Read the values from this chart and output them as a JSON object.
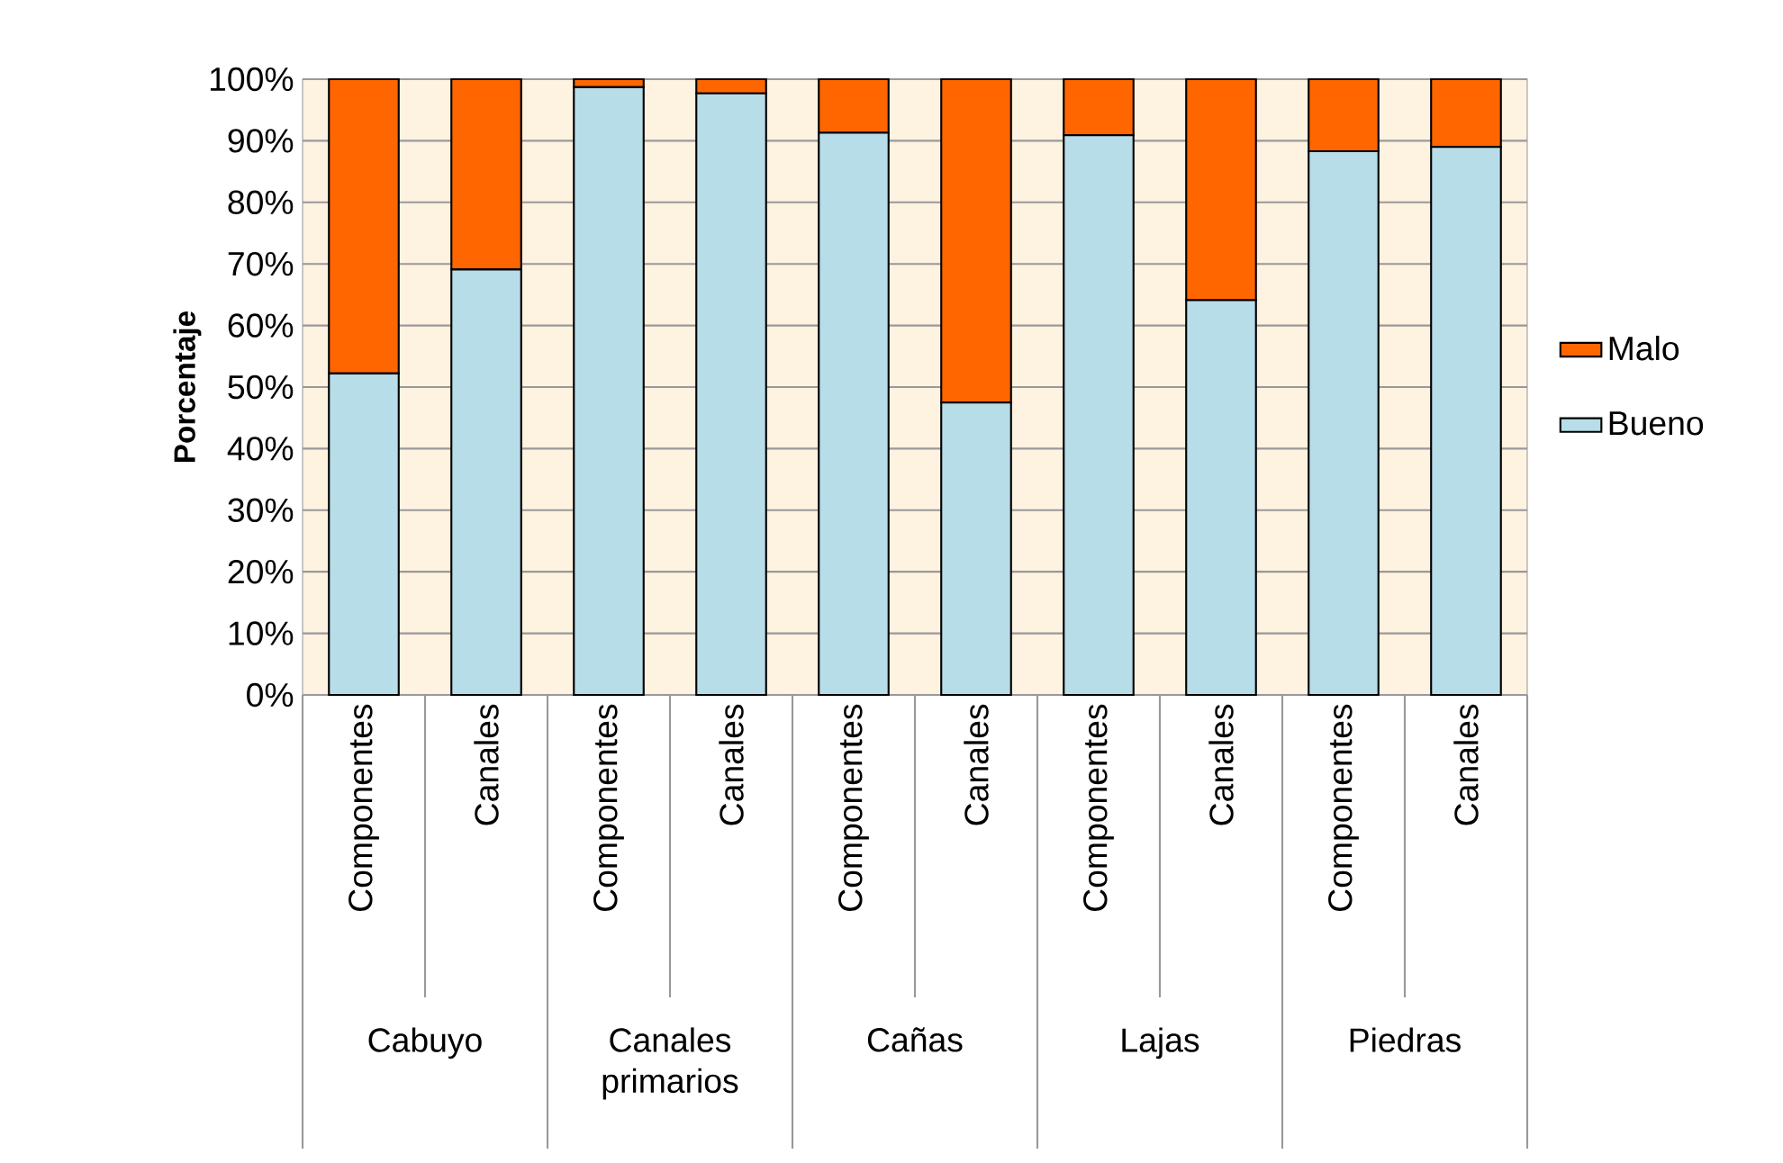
{
  "chart_data": {
    "type": "bar",
    "stacked": true,
    "ylabel": "Porcentaje",
    "categories": [
      "Componentes",
      "Canales",
      "Componentes",
      "Canales",
      "Componentes",
      "Canales",
      "Componentes",
      "Canales",
      "Componentes",
      "Canales"
    ],
    "annotations": [
      "Cabuyo",
      "Canales primarios",
      "Cañas",
      "Lajas",
      "Piedras"
    ],
    "series": [
      {
        "name": "Bueno",
        "color": "#b7dde8",
        "values": [
          52.2,
          69.1,
          98.7,
          97.7,
          91.3,
          47.5,
          90.9,
          64.1,
          88.3,
          89.0
        ]
      },
      {
        "name": "Malo",
        "color": "#ff6600",
        "values": [
          47.8,
          30.9,
          1.3,
          2.3,
          8.7,
          52.5,
          9.1,
          35.9,
          11.7,
          11.0
        ]
      }
    ],
    "ylim": [
      0,
      100
    ],
    "yticks": [
      {
        "value": 0,
        "label": "0%"
      },
      {
        "value": 10,
        "label": "10%"
      },
      {
        "value": 20,
        "label": "20%"
      },
      {
        "value": 30,
        "label": "30%"
      },
      {
        "value": 40,
        "label": "40%"
      },
      {
        "value": 50,
        "label": "50%"
      },
      {
        "value": 60,
        "label": "60%"
      },
      {
        "value": 70,
        "label": "70%"
      },
      {
        "value": 80,
        "label": "80%"
      },
      {
        "value": 90,
        "label": "90%"
      },
      {
        "value": 100,
        "label": "100%"
      }
    ],
    "grid": "y",
    "legend": "right"
  }
}
